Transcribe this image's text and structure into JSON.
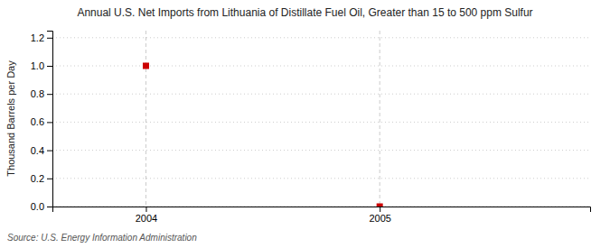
{
  "chart_data": {
    "type": "scatter",
    "title": "Annual U.S. Net Imports from Lithuania of Distillate Fuel Oil, Greater than 15 to 500 ppm Sulfur",
    "y_label": "Thousand Barrels per Day",
    "annotations": [
      "Source: U.S. Energy Information Administration"
    ],
    "x": [
      2004,
      2005
    ],
    "values": [
      1.0,
      0.0
    ],
    "color": "#cc0000",
    "marker": "square",
    "xlim": [
      2003.6,
      2005.9
    ],
    "ylim": [
      0.0,
      1.25
    ],
    "xticks": [
      2004,
      2005
    ],
    "yticks": [
      {
        "value": 0.0,
        "label": "0.0"
      },
      0.2,
      0.4,
      0.6,
      0.8,
      {
        "value": 1.0,
        "label": "1.0"
      },
      1.2
    ],
    "grid": true
  }
}
